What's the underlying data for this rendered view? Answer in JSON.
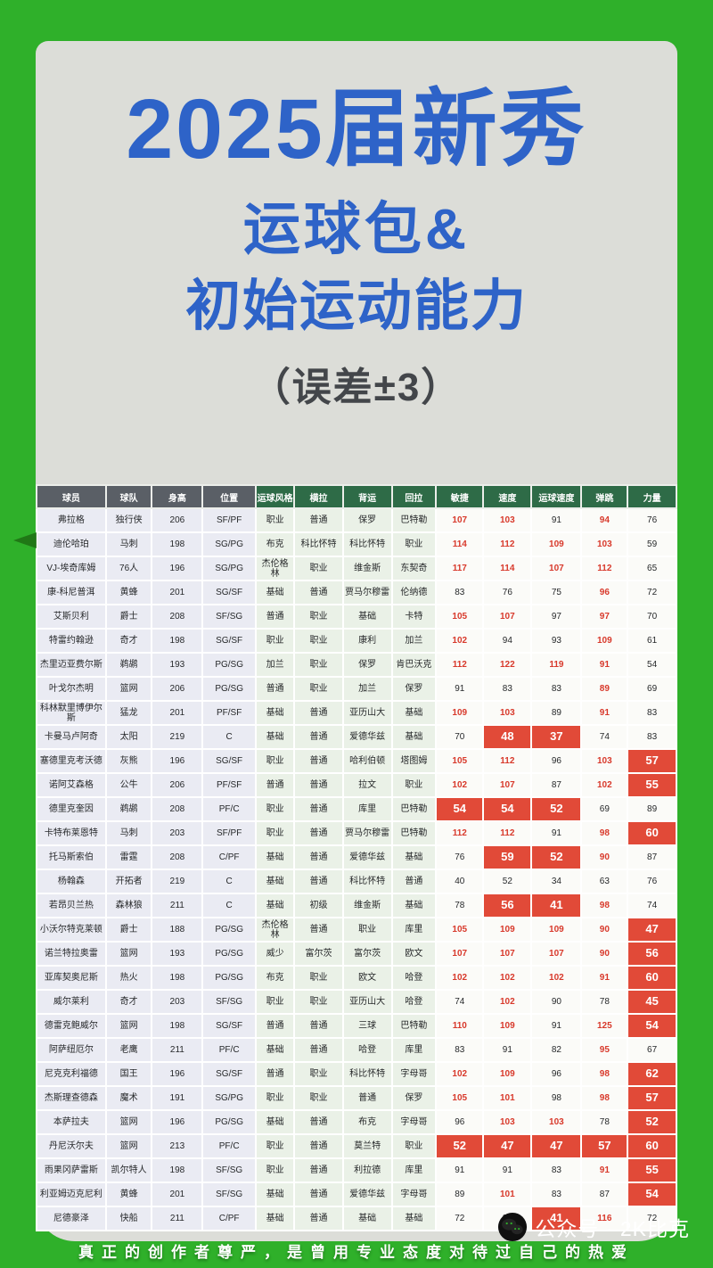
{
  "poster": {
    "title_lines": [
      "2025届新秀",
      "运球包&",
      "初始运动能力"
    ],
    "subtitle": "（误差±3）"
  },
  "footer": {
    "slogan": "真正的创作者尊严，是曾用专业态度对待过自己的热爱",
    "wechat_account": "公众号 · 2K比克",
    "wechat_icon": "wechat-logo"
  },
  "colors": {
    "frame_green": "#2fb02a",
    "card_gray": "#dcddd8",
    "title_blue": "#2e63c8",
    "subtitle_gray": "#43464a",
    "header_dark": "#5a5f66",
    "header_green": "#2e6b47",
    "info_col_bg": "#eaebf3",
    "dribble_col_bg": "#eaf1e7",
    "rating_col_bg": "#fbfbf8",
    "highlight_red_bg": "#e14a38",
    "highlight_red_text": "#d8392b"
  },
  "chart_data": {
    "type": "table",
    "title": "2025届新秀 运球包 & 初始运动能力（误差±3）",
    "columns": [
      "球员",
      "球队",
      "身高",
      "位置",
      "运球风格",
      "横拉",
      "背运",
      "回拉",
      "敏捷",
      "速度",
      "运球速度",
      "弹跳",
      "力量"
    ],
    "column_widths_pct": [
      10.8,
      7.2,
      7.9,
      8.3,
      6.0,
      7.6,
      7.6,
      6.9,
      7.4,
      7.5,
      7.8,
      7.2,
      7.6
    ],
    "flag_legend": {
      "": "normal black number",
      "r": "red text number",
      "R": "red background white number"
    },
    "rows": [
      {
        "cells": [
          "弗拉格",
          "独行侠",
          "206",
          "SF/PF",
          "职业",
          "普通",
          "保罗",
          "巴特勒",
          107,
          103,
          91,
          94,
          76
        ],
        "flags": [
          "r",
          "r",
          "",
          "r",
          ""
        ]
      },
      {
        "cells": [
          "迪伦哈珀",
          "马刺",
          "198",
          "SG/PG",
          "布克",
          "科比怀特",
          "科比怀特",
          "职业",
          114,
          112,
          109,
          103,
          59
        ],
        "flags": [
          "r",
          "r",
          "r",
          "r",
          ""
        ]
      },
      {
        "cells": [
          "VJ-埃奇库姆",
          "76人",
          "196",
          "SG/PG",
          "杰伦格林",
          "职业",
          "维金斯",
          "东契奇",
          117,
          114,
          107,
          112,
          65
        ],
        "flags": [
          "r",
          "r",
          "r",
          "r",
          ""
        ]
      },
      {
        "cells": [
          "康-科尼普洱",
          "黄蜂",
          "201",
          "SG/SF",
          "基础",
          "普通",
          "贾马尔穆雷",
          "伦纳德",
          83,
          76,
          75,
          96,
          72
        ],
        "flags": [
          "",
          "",
          "",
          "r",
          ""
        ]
      },
      {
        "cells": [
          "艾斯贝利",
          "爵士",
          "208",
          "SF/SG",
          "普通",
          "职业",
          "基础",
          "卡特",
          105,
          107,
          97,
          97,
          70
        ],
        "flags": [
          "r",
          "r",
          "",
          "r",
          ""
        ]
      },
      {
        "cells": [
          "特雷约翰逊",
          "奇才",
          "198",
          "SG/SF",
          "职业",
          "职业",
          "康利",
          "加兰",
          102,
          94,
          93,
          109,
          61
        ],
        "flags": [
          "r",
          "",
          "",
          "r",
          ""
        ]
      },
      {
        "cells": [
          "杰里迈亚费尔斯",
          "鹈鹕",
          "193",
          "PG/SG",
          "加兰",
          "职业",
          "保罗",
          "肯巴沃克",
          112,
          122,
          119,
          91,
          54
        ],
        "flags": [
          "r",
          "r",
          "r",
          "r",
          ""
        ]
      },
      {
        "cells": [
          "叶戈尔杰明",
          "篮网",
          "206",
          "PG/SG",
          "普通",
          "职业",
          "加兰",
          "保罗",
          91,
          83,
          83,
          89,
          69
        ],
        "flags": [
          "",
          "",
          "",
          "r",
          ""
        ]
      },
      {
        "cells": [
          "科林默里博伊尔斯",
          "猛龙",
          "201",
          "PF/SF",
          "基础",
          "普通",
          "亚历山大",
          "基础",
          109,
          103,
          89,
          91,
          83
        ],
        "flags": [
          "r",
          "r",
          "",
          "r",
          ""
        ]
      },
      {
        "cells": [
          "卡曼马卢阿奇",
          "太阳",
          "219",
          "C",
          "基础",
          "普通",
          "爱德华兹",
          "基础",
          70,
          48,
          37,
          74,
          83
        ],
        "flags": [
          "",
          "R",
          "R",
          "",
          ""
        ]
      },
      {
        "cells": [
          "塞德里克考沃德",
          "灰熊",
          "196",
          "SG/SF",
          "职业",
          "普通",
          "哈利伯顿",
          "塔图姆",
          105,
          112,
          96,
          103,
          57
        ],
        "flags": [
          "r",
          "r",
          "",
          "r",
          "R"
        ]
      },
      {
        "cells": [
          "诺阿艾森格",
          "公牛",
          "206",
          "PF/SF",
          "普通",
          "普通",
          "拉文",
          "职业",
          102,
          107,
          87,
          102,
          55
        ],
        "flags": [
          "r",
          "r",
          "",
          "r",
          "R"
        ]
      },
      {
        "cells": [
          "德里克奎因",
          "鹈鹕",
          "208",
          "PF/C",
          "职业",
          "普通",
          "库里",
          "巴特勒",
          54,
          54,
          52,
          69,
          89
        ],
        "flags": [
          "R",
          "R",
          "R",
          "",
          ""
        ]
      },
      {
        "cells": [
          "卡特布莱恩特",
          "马刺",
          "203",
          "SF/PF",
          "职业",
          "普通",
          "贾马尔穆雷",
          "巴特勒",
          112,
          112,
          91,
          98,
          60
        ],
        "flags": [
          "r",
          "r",
          "",
          "r",
          "R"
        ]
      },
      {
        "cells": [
          "托马斯索伯",
          "雷霆",
          "208",
          "C/PF",
          "基础",
          "普通",
          "爱德华兹",
          "基础",
          76,
          59,
          52,
          90,
          87
        ],
        "flags": [
          "",
          "R",
          "R",
          "r",
          ""
        ]
      },
      {
        "cells": [
          "杨翰森",
          "开拓者",
          "219",
          "C",
          "基础",
          "普通",
          "科比怀特",
          "普通",
          40,
          52,
          34,
          63,
          76
        ],
        "flags": [
          "",
          "",
          "",
          "",
          ""
        ]
      },
      {
        "cells": [
          "若昂贝兰热",
          "森林狼",
          "211",
          "C",
          "基础",
          "初级",
          "维金斯",
          "基础",
          78,
          56,
          41,
          98,
          74
        ],
        "flags": [
          "",
          "R",
          "R",
          "r",
          ""
        ]
      },
      {
        "cells": [
          "小沃尔特克莱顿",
          "爵士",
          "188",
          "PG/SG",
          "杰伦格林",
          "普通",
          "职业",
          "库里",
          105,
          109,
          109,
          90,
          47
        ],
        "flags": [
          "r",
          "r",
          "r",
          "r",
          "R"
        ]
      },
      {
        "cells": [
          "诺兰特拉奥雷",
          "篮网",
          "193",
          "PG/SG",
          "威少",
          "富尔茨",
          "富尔茨",
          "欧文",
          107,
          107,
          107,
          90,
          56
        ],
        "flags": [
          "r",
          "r",
          "r",
          "r",
          "R"
        ]
      },
      {
        "cells": [
          "亚库契奥尼斯",
          "热火",
          "198",
          "PG/SG",
          "布克",
          "职业",
          "欧文",
          "哈登",
          102,
          102,
          102,
          91,
          60
        ],
        "flags": [
          "r",
          "r",
          "r",
          "r",
          "R"
        ]
      },
      {
        "cells": [
          "威尔莱利",
          "奇才",
          "203",
          "SF/SG",
          "职业",
          "职业",
          "亚历山大",
          "哈登",
          74,
          102,
          90,
          78,
          45
        ],
        "flags": [
          "",
          "r",
          "",
          "",
          "R"
        ]
      },
      {
        "cells": [
          "德雷克鲍威尔",
          "篮网",
          "198",
          "SG/SF",
          "普通",
          "普通",
          "三球",
          "巴特勒",
          110,
          109,
          91,
          125,
          54
        ],
        "flags": [
          "r",
          "r",
          "",
          "r",
          "R"
        ]
      },
      {
        "cells": [
          "阿萨纽厄尔",
          "老鹰",
          "211",
          "PF/C",
          "基础",
          "普通",
          "哈登",
          "库里",
          83,
          91,
          82,
          95,
          67
        ],
        "flags": [
          "",
          "",
          "",
          "r",
          ""
        ]
      },
      {
        "cells": [
          "尼克克利福德",
          "国王",
          "196",
          "SG/SF",
          "普通",
          "职业",
          "科比怀特",
          "字母哥",
          102,
          109,
          96,
          98,
          62
        ],
        "flags": [
          "r",
          "r",
          "",
          "r",
          "R"
        ]
      },
      {
        "cells": [
          "杰斯理查德森",
          "魔术",
          "191",
          "SG/PG",
          "职业",
          "职业",
          "普通",
          "保罗",
          105,
          101,
          98,
          98,
          57
        ],
        "flags": [
          "r",
          "r",
          "",
          "r",
          "R"
        ]
      },
      {
        "cells": [
          "本萨拉夫",
          "篮网",
          "196",
          "PG/SG",
          "基础",
          "普通",
          "布克",
          "字母哥",
          96,
          103,
          103,
          78,
          52
        ],
        "flags": [
          "",
          "r",
          "r",
          "",
          "R"
        ]
      },
      {
        "cells": [
          "丹尼沃尔夫",
          "篮网",
          "213",
          "PF/C",
          "职业",
          "普通",
          "莫兰特",
          "职业",
          52,
          47,
          47,
          57,
          60
        ],
        "flags": [
          "R",
          "R",
          "R",
          "R",
          "R"
        ]
      },
      {
        "cells": [
          "雨果冈萨雷斯",
          "凯尔特人",
          "198",
          "SF/SG",
          "职业",
          "普通",
          "利拉德",
          "库里",
          91,
          91,
          83,
          91,
          55
        ],
        "flags": [
          "",
          "",
          "",
          "r",
          "R"
        ]
      },
      {
        "cells": [
          "利亚姆迈克尼利",
          "黄蜂",
          "201",
          "SF/SG",
          "基础",
          "普通",
          "爱德华兹",
          "字母哥",
          89,
          101,
          83,
          87,
          54
        ],
        "flags": [
          "",
          "r",
          "",
          "",
          "R"
        ]
      },
      {
        "cells": [
          "尼德豪泽",
          "快船",
          "211",
          "C/PF",
          "基础",
          "普通",
          "基础",
          "基础",
          72,
          89,
          41,
          116,
          72
        ],
        "flags": [
          "",
          "",
          "R",
          "r",
          ""
        ]
      }
    ]
  }
}
